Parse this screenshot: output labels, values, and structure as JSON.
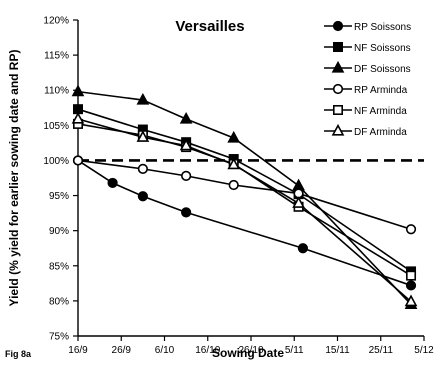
{
  "figure_label": "Fig 8a",
  "chart_data": {
    "type": "line",
    "title": "Versailles",
    "xlabel": "Sowing Date",
    "ylabel": "Yield (% yield for earlier sowing date and RP)",
    "x_tick_labels": [
      "16/9",
      "26/9",
      "6/10",
      "16/10",
      "26/10",
      "5/11",
      "15/11",
      "25/11",
      "5/12"
    ],
    "x_tick_days": [
      0,
      10,
      20,
      30,
      40,
      50,
      60,
      70,
      80
    ],
    "xlim": [
      0,
      80
    ],
    "y_tick_labels": [
      "75%",
      "80%",
      "85%",
      "90%",
      "95%",
      "100%",
      "105%",
      "110%",
      "115%",
      "120%"
    ],
    "ylim": [
      75,
      120
    ],
    "grid": false,
    "legend_position": "top-right",
    "reference_line": {
      "y": 100,
      "style": "dashed"
    },
    "series": [
      {
        "name": "RP Soissons",
        "marker": "circle-filled",
        "x": [
          0,
          8,
          15,
          25,
          52,
          77
        ],
        "y": [
          100,
          96.8,
          94.9,
          92.6,
          87.5,
          82.2
        ]
      },
      {
        "name": "NF Soissons",
        "marker": "square-filled",
        "x": [
          0,
          15,
          25,
          36,
          51,
          77
        ],
        "y": [
          107.3,
          104.4,
          102.6,
          100.2,
          95.2,
          84.2
        ]
      },
      {
        "name": "DF Soissons",
        "marker": "triangle-filled",
        "x": [
          0,
          15,
          25,
          36,
          51,
          77
        ],
        "y": [
          109.8,
          108.6,
          105.9,
          103.2,
          96.4,
          79.5
        ]
      },
      {
        "name": "RP Arminda",
        "marker": "circle-open",
        "x": [
          0,
          15,
          25,
          36,
          51,
          77
        ],
        "y": [
          100,
          98.8,
          97.8,
          96.5,
          95.3,
          90.2
        ]
      },
      {
        "name": "NF Arminda",
        "marker": "square-open",
        "x": [
          0,
          15,
          25,
          36,
          51,
          77
        ],
        "y": [
          105.2,
          103.6,
          101.9,
          99.5,
          93.4,
          83.6
        ]
      },
      {
        "name": "DF Arminda",
        "marker": "triangle-open",
        "x": [
          0,
          15,
          25,
          36,
          51,
          77
        ],
        "y": [
          105.9,
          103.3,
          102.1,
          99.4,
          93.9,
          79.9
        ]
      }
    ]
  }
}
